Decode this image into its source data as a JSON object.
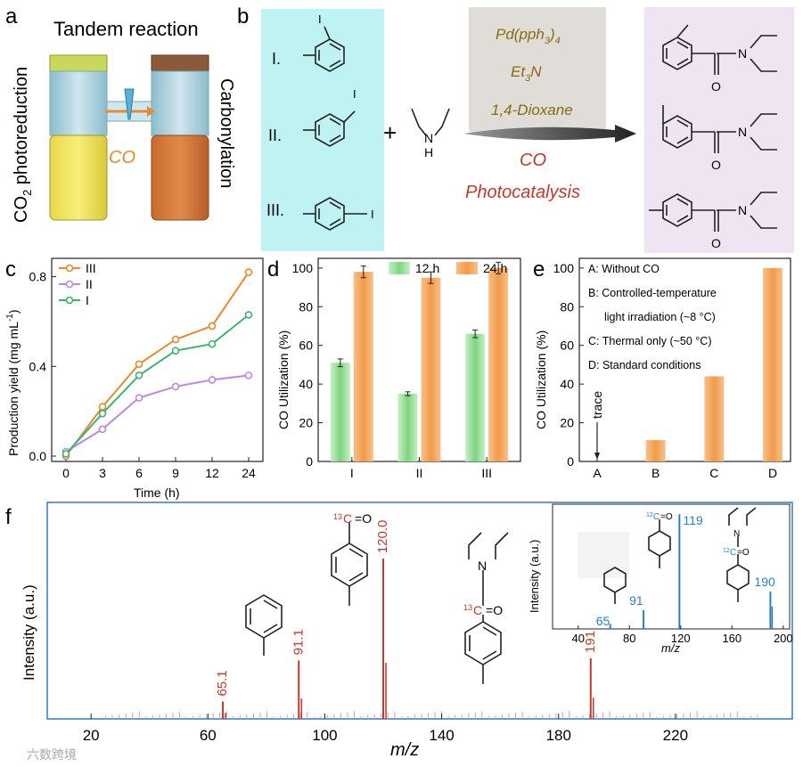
{
  "panel_labels": {
    "a": "a",
    "b": "b",
    "c": "c",
    "d": "d",
    "e": "e",
    "f": "f"
  },
  "panel_a": {
    "title": "Tandem reaction",
    "left_label": "CO",
    "left_label_sub": "2",
    "left_label_rest": " photoreduction",
    "right_label": "Carbonylation",
    "center_label": "CO"
  },
  "panel_b": {
    "substrates": [
      "I.",
      "II.",
      "III."
    ],
    "iodo": "I",
    "plus": "+",
    "amine_h": "H",
    "amine_n": "N",
    "conditions": {
      "catalyst": "Pd(pph",
      "catalyst_sub": "3",
      "catalyst_end": ")",
      "catalyst_sub2": "4",
      "base": "Et",
      "base_sub": "3",
      "base_end": "N",
      "solvent": "1,4-Dioxane"
    },
    "co_label": "CO",
    "photo_label": "Photocatalysis",
    "product_n": "N",
    "product_o": "O"
  },
  "colors": {
    "orange": "#e8892f",
    "purple": "#b98be0",
    "green": "#3cb371",
    "cyan_bg": "#bff3f3",
    "pink_bg": "#efe4f1",
    "spectrum_red": "#c0392b",
    "spectrum_blue": "#2a7fc9"
  },
  "chart_data": [
    {
      "id": "c",
      "type": "line",
      "x_ticks": [
        "0",
        "3",
        "6",
        "9",
        "12",
        "24"
      ],
      "x": [
        0,
        3,
        6,
        9,
        12,
        24
      ],
      "xlabel": "Time (h)",
      "ylabel": "Production yield (mg mL",
      "ylabel_sup": "-1",
      "ylabel_end": ")",
      "ylim": [
        0,
        0.85
      ],
      "y_ticks": [
        "0.0",
        "0.4",
        "0.8"
      ],
      "series": [
        {
          "name": "III",
          "color": "#e8892f",
          "values": [
            0.0,
            0.22,
            0.41,
            0.52,
            0.58,
            0.82
          ]
        },
        {
          "name": "II",
          "color": "#b98be0",
          "values": [
            0.02,
            0.12,
            0.26,
            0.31,
            0.34,
            0.36
          ]
        },
        {
          "name": "I",
          "color": "#3cb371",
          "values": [
            0.01,
            0.19,
            0.36,
            0.47,
            0.5,
            0.63
          ]
        }
      ]
    },
    {
      "id": "d",
      "type": "bar",
      "categories": [
        "I",
        "II",
        "III"
      ],
      "ylabel": "CO Utilization (%)",
      "ylim": [
        0,
        105
      ],
      "y_ticks": [
        "0",
        "20",
        "40",
        "60",
        "80",
        "100"
      ],
      "series": [
        {
          "name": "12 h",
          "color": "#8fdc8f",
          "values": [
            51,
            35,
            66
          ],
          "errors": [
            2,
            1,
            2
          ]
        },
        {
          "name": "24 h",
          "color": "#f5a55c",
          "values": [
            98,
            95,
            100
          ],
          "errors": [
            3,
            3,
            3
          ]
        }
      ]
    },
    {
      "id": "e",
      "type": "bar",
      "categories": [
        "A",
        "B",
        "C",
        "D"
      ],
      "ylabel": "CO Utilization (%)",
      "ylim": [
        0,
        105
      ],
      "y_ticks": [
        "0",
        "20",
        "40",
        "60",
        "80",
        "100"
      ],
      "values": [
        0,
        11,
        44,
        100
      ],
      "annotation": "trace",
      "legend": [
        "A: Without CO",
        "B: Controlled-temperature",
        "light irradiation (~8 °C)",
        "C: Thermal only (~50 °C)",
        "D: Standard conditions"
      ]
    },
    {
      "id": "f",
      "type": "bar",
      "xlabel": "m/z",
      "ylabel": "Intensity (a.u.)",
      "xlim": [
        5,
        260
      ],
      "x_ticks": [
        "20",
        "60",
        "100",
        "140",
        "180",
        "220"
      ],
      "x_tick_values": [
        20,
        60,
        100,
        140,
        180,
        220
      ],
      "peaks": [
        {
          "mz": 65.1,
          "intensity": 0.08,
          "label": "65.1"
        },
        {
          "mz": 91.1,
          "intensity": 0.27,
          "label": "91.1"
        },
        {
          "mz": 120.0,
          "intensity": 0.74,
          "label": "120.0"
        },
        {
          "mz": 191.0,
          "intensity": 0.28,
          "label": "191.0"
        }
      ],
      "struct_labels": {
        "c13": "13",
        "c": "C",
        "o": "O",
        "n": "N"
      },
      "inset": {
        "type": "bar",
        "xlabel": "m/z",
        "ylabel": "Intensity (a.u.)",
        "xlim": [
          20,
          205
        ],
        "x_ticks": [
          "40",
          "80",
          "120",
          "160",
          "200"
        ],
        "x_tick_values": [
          40,
          80,
          120,
          160,
          200
        ],
        "peaks": [
          {
            "mz": 65,
            "intensity": 0.04,
            "label": "65"
          },
          {
            "mz": 91,
            "intensity": 0.15,
            "label": "91"
          },
          {
            "mz": 119,
            "intensity": 0.92,
            "label": "119"
          },
          {
            "mz": 190,
            "intensity": 0.3,
            "label": "190"
          }
        ],
        "struct_labels": {
          "c12": "12",
          "c": "C",
          "o": "O",
          "n": "N"
        }
      }
    }
  ],
  "watermark": "六数跨境"
}
